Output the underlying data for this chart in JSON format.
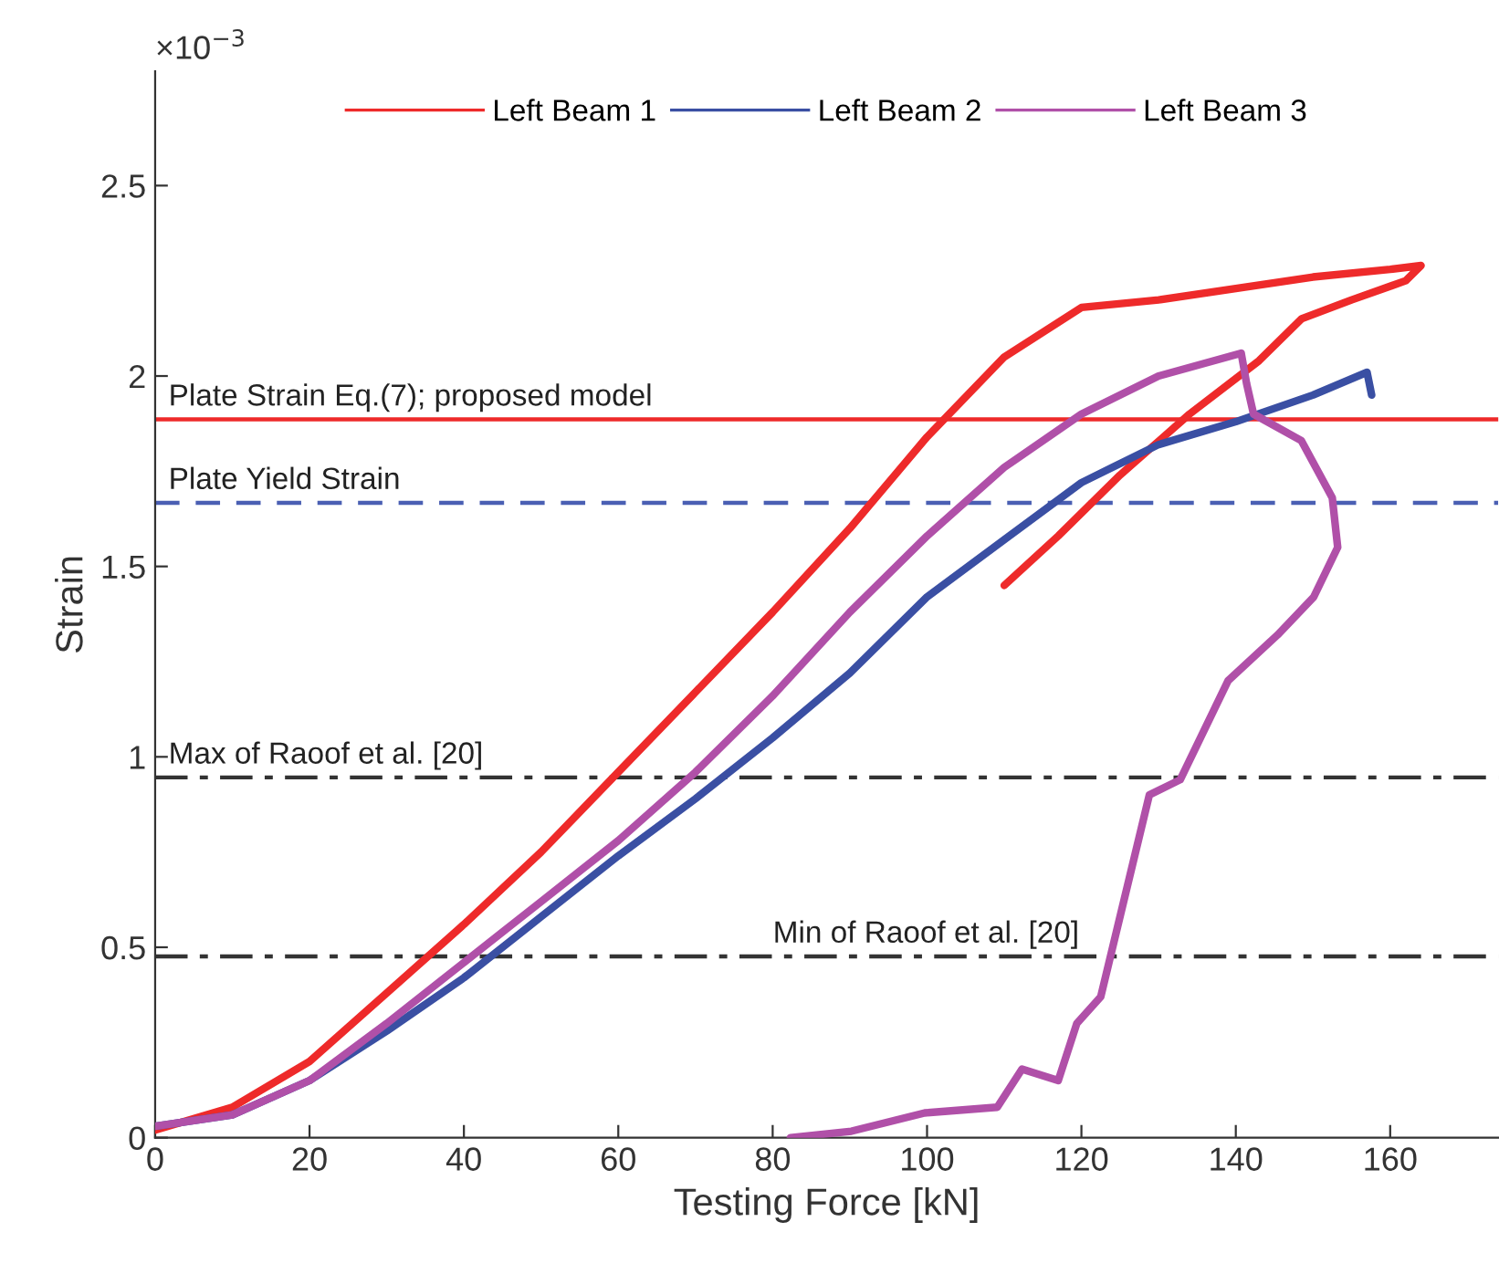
{
  "chart_data": {
    "type": "line",
    "xlabel": "Testing Force [kN]",
    "ylabel": "Strain",
    "annotations": [
      "×10$^{−3}$"
    ],
    "xlim": [
      0,
      174
    ],
    "xticks": [
      0,
      20,
      40,
      60,
      80,
      100,
      120,
      140,
      160
    ],
    "ylim": [
      0,
      2.8
    ],
    "yticks": [
      0,
      0.5,
      1,
      1.5,
      2,
      2.5
    ],
    "grid": false,
    "legend": "top",
    "marker": "none",
    "line_style": "solid",
    "series": [
      {
        "name": "Left Beam 1",
        "color": "#ee2a2a",
        "x": [
          0,
          10,
          20,
          30,
          40,
          50,
          60,
          70,
          80,
          90,
          100,
          110,
          120,
          130,
          140,
          150,
          160,
          164,
          162,
          155,
          148.5,
          143,
          134,
          125,
          117,
          110
        ],
        "values": [
          0.02,
          0.08,
          0.2,
          0.38,
          0.56,
          0.75,
          0.96,
          1.17,
          1.38,
          1.6,
          1.84,
          2.05,
          2.18,
          2.2,
          2.23,
          2.26,
          2.28,
          2.29,
          2.25,
          2.2,
          2.15,
          2.04,
          1.9,
          1.74,
          1.58,
          1.45
        ]
      },
      {
        "name": "Left Beam 2",
        "color": "#3a4fa3",
        "x": [
          0,
          10,
          20,
          30,
          40,
          50,
          60,
          70,
          80,
          90,
          100,
          110,
          120,
          130,
          140,
          150,
          157,
          157.6
        ],
        "values": [
          0.03,
          0.06,
          0.15,
          0.28,
          0.42,
          0.58,
          0.74,
          0.89,
          1.05,
          1.22,
          1.42,
          1.57,
          1.72,
          1.82,
          1.88,
          1.95,
          2.01,
          1.95
        ]
      },
      {
        "name": "Left Beam 3",
        "color": "#b050a8",
        "x": [
          0,
          10,
          20,
          30,
          40,
          50,
          60,
          70,
          80,
          90,
          100,
          110,
          120,
          130,
          140.7,
          141.4,
          142.3,
          148.5,
          152.5,
          153.2,
          150.1,
          145.4,
          139,
          132.8,
          128.8,
          122.5,
          119.4,
          117,
          112.3,
          109.1,
          99.7,
          90.2,
          82.3
        ],
        "values": [
          0.03,
          0.06,
          0.15,
          0.3,
          0.46,
          0.62,
          0.78,
          0.96,
          1.16,
          1.38,
          1.58,
          1.76,
          1.9,
          2.0,
          2.06,
          1.98,
          1.9,
          1.83,
          1.68,
          1.55,
          1.42,
          1.32,
          1.2,
          0.94,
          0.9,
          0.37,
          0.3,
          0.15,
          0.18,
          0.08,
          0.065,
          0.017,
          0.0
        ]
      }
    ],
    "ref_lines": [
      {
        "axis": "y",
        "value": 1.886,
        "label": "Plate Strain Eq.(7); proposed model",
        "color": "#ee2a2a",
        "line_style": "solid"
      },
      {
        "axis": "y",
        "value": 1.667,
        "label": "Plate Yield Strain",
        "color": "#4a5fb3",
        "line_style": "dashed"
      },
      {
        "axis": "y",
        "value": 0.946,
        "label": "Max of Raoof et al. [20]",
        "color": "#333333",
        "line_style": "dashdot"
      },
      {
        "axis": "y",
        "value": 0.476,
        "label": "Min of Raoof et al. [20]",
        "color": "#333333",
        "line_style": "dashdot"
      }
    ]
  }
}
